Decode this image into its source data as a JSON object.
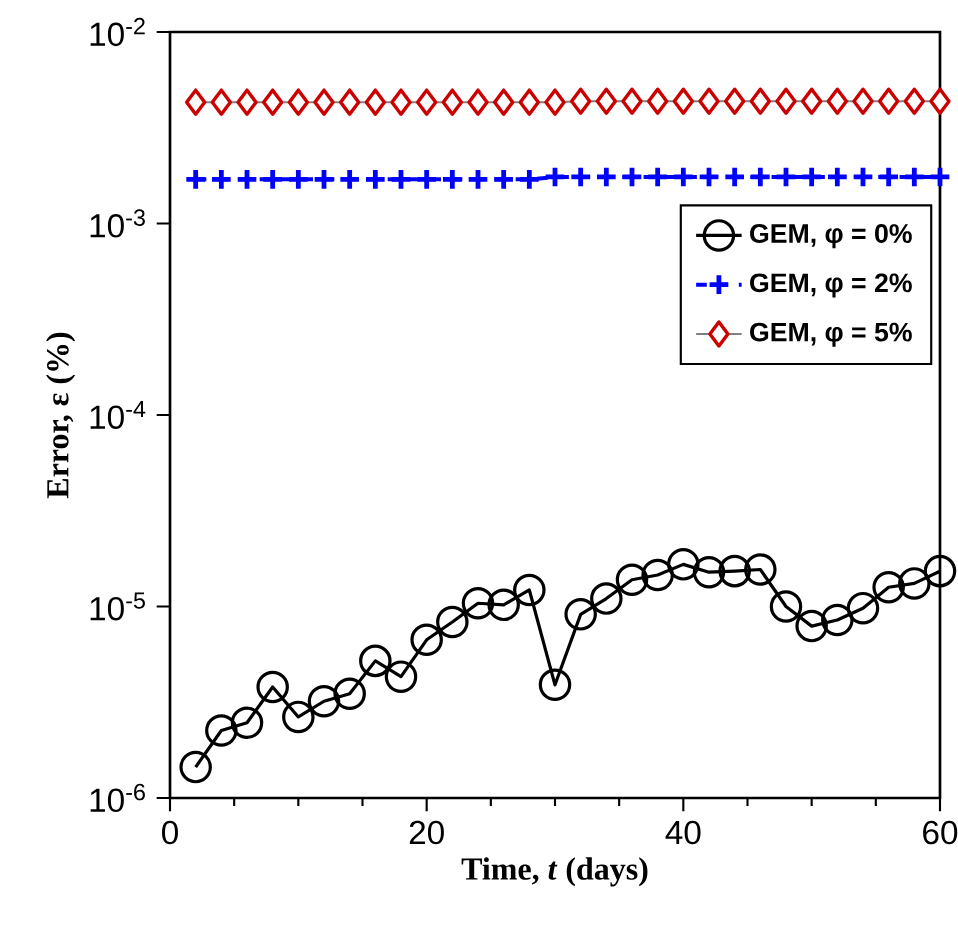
{
  "chart_data": {
    "type": "line",
    "xlabel": "Time, *t* (days)",
    "ylabel": "Error, ε (%)",
    "log": "y",
    "xlim": [
      0,
      60
    ],
    "xticks": [
      0,
      20,
      40,
      60
    ],
    "ylim": [
      1e-06,
      0.01
    ],
    "yticks": [
      {
        "value": 1e-06,
        "label": "10$^{-6}$"
      },
      {
        "value": 1e-05,
        "label": "10$^{-5}$"
      },
      {
        "value": 0.0001,
        "label": "10$^{-4}$"
      },
      {
        "value": 0.001,
        "label": "10$^{-3}$"
      },
      {
        "value": 0.01,
        "label": "10$^{-2}$"
      }
    ],
    "legend": "top right",
    "grid": false,
    "x": [
      2,
      4,
      6,
      8,
      10,
      12,
      14,
      16,
      18,
      20,
      22,
      24,
      26,
      28,
      30,
      32,
      34,
      36,
      38,
      40,
      42,
      44,
      46,
      48,
      50,
      52,
      54,
      56,
      58,
      60
    ],
    "series": [
      {
        "name": "GEM, φ = 0%",
        "color": "#000000",
        "marker": "circle",
        "line_style": "solid",
        "values": [
          1.45e-06,
          2.25e-06,
          2.47e-06,
          3.8e-06,
          2.65e-06,
          3.2e-06,
          3.5e-06,
          5.2e-06,
          4.3e-06,
          6.7e-06,
          8.3e-06,
          1.04e-05,
          1.02e-05,
          1.22e-05,
          3.9e-06,
          9.1e-06,
          1.1e-05,
          1.38e-05,
          1.46e-05,
          1.66e-05,
          1.51e-05,
          1.53e-05,
          1.56e-05,
          1e-05,
          7.9e-06,
          8.5e-06,
          9.8e-06,
          1.26e-05,
          1.32e-05,
          1.53e-05
        ]
      },
      {
        "name": "GEM, φ = 2%",
        "color": "#0000ff",
        "marker": "cross",
        "line_style": "dashed",
        "values": [
          0.0017,
          0.0017,
          0.0017,
          0.0017,
          0.0017,
          0.0017,
          0.0017,
          0.0017,
          0.0017,
          0.0017,
          0.0017,
          0.0017,
          0.0017,
          0.0017,
          0.00175,
          0.00175,
          0.00175,
          0.00175,
          0.00175,
          0.00175,
          0.00175,
          0.00175,
          0.00175,
          0.00175,
          0.00175,
          0.00175,
          0.00175,
          0.00175,
          0.00175,
          0.00175
        ]
      },
      {
        "name": "GEM, φ = 5%",
        "color": "#cc0000",
        "marker": "diamond",
        "line_style": "solid",
        "values": [
          0.0043,
          0.0043,
          0.0043,
          0.0043,
          0.0043,
          0.0043,
          0.0043,
          0.0043,
          0.0043,
          0.0043,
          0.0043,
          0.0043,
          0.0043,
          0.0043,
          0.0043,
          0.00435,
          0.00435,
          0.00435,
          0.00435,
          0.00435,
          0.00435,
          0.00435,
          0.00435,
          0.00435,
          0.00435,
          0.00435,
          0.00435,
          0.00435,
          0.00435,
          0.00435
        ]
      }
    ]
  }
}
